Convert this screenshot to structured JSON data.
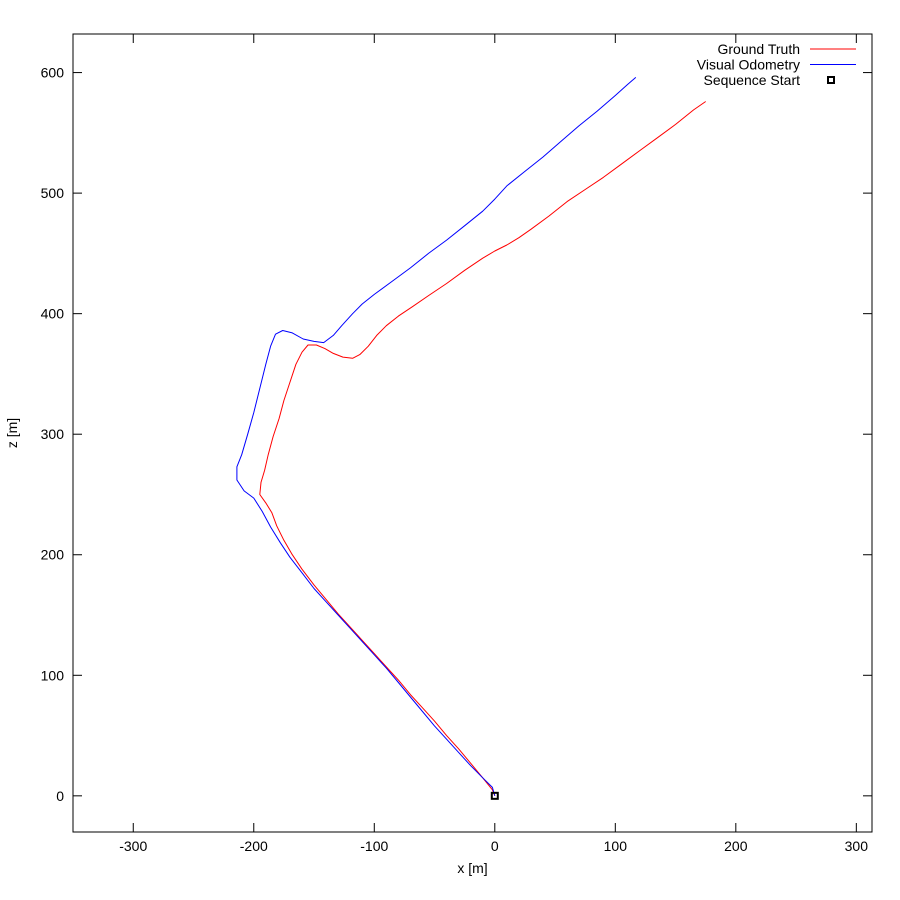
{
  "chart_data": {
    "type": "line",
    "title": "",
    "xlabel": "x [m]",
    "ylabel": "z [m]",
    "xlim": [
      -350,
      313
    ],
    "ylim": [
      -30,
      632
    ],
    "x_ticks": [
      -300,
      -200,
      -100,
      0,
      100,
      200,
      300
    ],
    "y_ticks": [
      0,
      100,
      200,
      300,
      400,
      500,
      600
    ],
    "x_tick_labels": [
      "-300",
      "-200",
      "-100",
      "0",
      "100",
      "200",
      "300"
    ],
    "y_tick_labels": [
      "0",
      "100",
      "200",
      "300",
      "400",
      "500",
      "600"
    ],
    "grid": false,
    "legend_position": "top-right",
    "series": [
      {
        "name": "Ground Truth",
        "color": "#ff0000",
        "points": [
          [
            0,
            0
          ],
          [
            -2,
            5
          ],
          [
            -10,
            15
          ],
          [
            -20,
            27
          ],
          [
            -30,
            39
          ],
          [
            -40,
            50
          ],
          [
            -50,
            62
          ],
          [
            -60,
            73
          ],
          [
            -70,
            84
          ],
          [
            -80,
            96
          ],
          [
            -90,
            107
          ],
          [
            -100,
            118
          ],
          [
            -110,
            129
          ],
          [
            -120,
            140
          ],
          [
            -130,
            151
          ],
          [
            -140,
            163
          ],
          [
            -150,
            175
          ],
          [
            -160,
            188
          ],
          [
            -168,
            200
          ],
          [
            -175,
            212
          ],
          [
            -181,
            224
          ],
          [
            -185,
            235
          ],
          [
            -190,
            243
          ],
          [
            -195,
            250
          ],
          [
            -194,
            260
          ],
          [
            -191,
            270
          ],
          [
            -188,
            283
          ],
          [
            -184,
            298
          ],
          [
            -179,
            313
          ],
          [
            -175,
            328
          ],
          [
            -170,
            343
          ],
          [
            -165,
            358
          ],
          [
            -160,
            368
          ],
          [
            -155,
            374
          ],
          [
            -148,
            374
          ],
          [
            -141,
            371
          ],
          [
            -134,
            367
          ],
          [
            -126,
            364
          ],
          [
            -118,
            363
          ],
          [
            -112,
            366
          ],
          [
            -105,
            373
          ],
          [
            -98,
            382
          ],
          [
            -90,
            390
          ],
          [
            -80,
            398
          ],
          [
            -68,
            406
          ],
          [
            -55,
            415
          ],
          [
            -40,
            425
          ],
          [
            -25,
            436
          ],
          [
            -10,
            446
          ],
          [
            0,
            452
          ],
          [
            10,
            457
          ],
          [
            20,
            463
          ],
          [
            30,
            470
          ],
          [
            45,
            481
          ],
          [
            60,
            493
          ],
          [
            75,
            503
          ],
          [
            90,
            513
          ],
          [
            105,
            524
          ],
          [
            120,
            535
          ],
          [
            135,
            546
          ],
          [
            150,
            557
          ],
          [
            165,
            569
          ],
          [
            175,
            576
          ]
        ]
      },
      {
        "name": "Visual Odometry",
        "color": "#0000ff",
        "points": [
          [
            0,
            0
          ],
          [
            -2,
            7
          ],
          [
            -10,
            15
          ],
          [
            -20,
            25
          ],
          [
            -30,
            36
          ],
          [
            -40,
            47
          ],
          [
            -50,
            58
          ],
          [
            -60,
            70
          ],
          [
            -70,
            82
          ],
          [
            -80,
            94
          ],
          [
            -90,
            106
          ],
          [
            -100,
            117
          ],
          [
            -110,
            128
          ],
          [
            -120,
            139
          ],
          [
            -130,
            150
          ],
          [
            -140,
            161
          ],
          [
            -150,
            172
          ],
          [
            -160,
            185
          ],
          [
            -170,
            198
          ],
          [
            -178,
            210
          ],
          [
            -186,
            223
          ],
          [
            -193,
            236
          ],
          [
            -200,
            247
          ],
          [
            -208,
            253
          ],
          [
            -214,
            262
          ],
          [
            -214,
            273
          ],
          [
            -210,
            283
          ],
          [
            -205,
            300
          ],
          [
            -200,
            318
          ],
          [
            -195,
            338
          ],
          [
            -190,
            358
          ],
          [
            -186,
            373
          ],
          [
            -182,
            383
          ],
          [
            -176,
            386
          ],
          [
            -168,
            384
          ],
          [
            -159,
            379
          ],
          [
            -150,
            377
          ],
          [
            -142,
            376
          ],
          [
            -134,
            382
          ],
          [
            -127,
            390
          ],
          [
            -118,
            400
          ],
          [
            -110,
            408
          ],
          [
            -100,
            416
          ],
          [
            -85,
            427
          ],
          [
            -70,
            438
          ],
          [
            -55,
            450
          ],
          [
            -40,
            461
          ],
          [
            -25,
            473
          ],
          [
            -10,
            485
          ],
          [
            0,
            495
          ],
          [
            10,
            506
          ],
          [
            25,
            518
          ],
          [
            40,
            530
          ],
          [
            55,
            543
          ],
          [
            70,
            556
          ],
          [
            85,
            568
          ],
          [
            100,
            581
          ],
          [
            110,
            590
          ],
          [
            117,
            596
          ]
        ]
      },
      {
        "name": "Sequence Start",
        "color": "#000000",
        "marker": "square",
        "points": [
          [
            0,
            0
          ]
        ]
      }
    ]
  }
}
